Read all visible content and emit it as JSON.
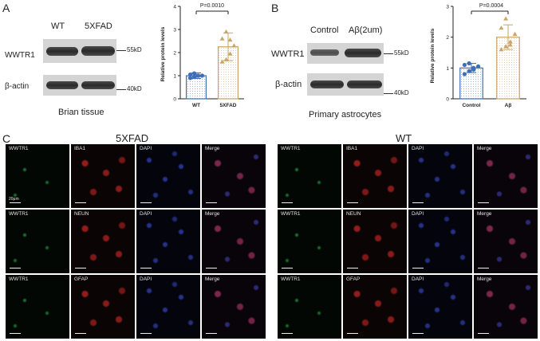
{
  "panelA": {
    "letter": "A",
    "lane_labels": [
      "WT",
      "5XFAD"
    ],
    "row_labels": [
      "WWTR1",
      "β-actin"
    ],
    "marker_labels": [
      "55kD",
      "40kD"
    ],
    "caption": "Brian tissue",
    "chart": {
      "ylabel": "Relative protein levels",
      "pvalue": "P=0.0010",
      "categories": [
        "WT",
        "5XFAD"
      ],
      "ticks": [
        "0",
        "1",
        "2",
        "3",
        "4"
      ]
    }
  },
  "panelB": {
    "letter": "B",
    "lane_labels": [
      "Control",
      "Aβ(2um)"
    ],
    "row_labels": [
      "WWTR1",
      "β-actin"
    ],
    "marker_labels": [
      "55kD",
      "40kD"
    ],
    "caption": "Primary astrocytes",
    "chart": {
      "ylabel": "Relative protein levels",
      "pvalue": "P=0.0004",
      "categories": [
        "Control",
        "Aβ"
      ],
      "ticks": [
        "0",
        "1",
        "2",
        "3"
      ]
    }
  },
  "panelC": {
    "letter": "C",
    "groups": [
      {
        "title": "5XFAD",
        "rows": [
          {
            "labels": [
              "WWTR1",
              "IBA1",
              "DAPI",
              "Merge"
            ],
            "scalebar": "20μm"
          },
          {
            "labels": [
              "WWTR1",
              "NEUN",
              "DAPI",
              "Merge"
            ]
          },
          {
            "labels": [
              "WWTR1",
              "GFAP",
              "DAPI",
              "Merge"
            ]
          }
        ]
      },
      {
        "title": "WT",
        "rows": [
          {
            "labels": [
              "WWTR1",
              "IBA1",
              "DAPI",
              "Merge"
            ]
          },
          {
            "labels": [
              "WWTR1",
              "NEUN",
              "DAPI",
              "Merge"
            ]
          },
          {
            "labels": [
              "WWTR1",
              "GFAP",
              "DAPI",
              "Merge"
            ]
          }
        ]
      }
    ]
  },
  "chart_data": [
    {
      "type": "bar",
      "title": "",
      "xlabel": "",
      "ylabel": "Relative protein levels",
      "categories": [
        "WT",
        "5XFAD"
      ],
      "values": [
        1.0,
        2.25
      ],
      "errors": [
        0.12,
        0.6
      ],
      "ylim": [
        0,
        4
      ],
      "points": [
        [
          0.9,
          0.95,
          1.0,
          1.0,
          1.05,
          1.1,
          1.0
        ],
        [
          1.6,
          1.7,
          1.95,
          2.3,
          2.6,
          2.9,
          2.55
        ]
      ],
      "colors": [
        "#3d6fb6",
        "#c9a46b"
      ],
      "annotation": "P=0.0010"
    },
    {
      "type": "bar",
      "title": "",
      "xlabel": "",
      "ylabel": "Relative protein levels",
      "categories": [
        "Control",
        "Aβ"
      ],
      "values": [
        1.0,
        2.0
      ],
      "errors": [
        0.15,
        0.4
      ],
      "ylim": [
        0,
        3
      ],
      "points": [
        [
          0.8,
          0.9,
          1.0,
          1.05,
          1.1,
          1.15,
          0.95
        ],
        [
          1.6,
          1.7,
          1.85,
          2.1,
          2.3,
          2.6,
          1.75
        ]
      ],
      "colors": [
        "#3d6fb6",
        "#c9a46b"
      ],
      "annotation": "P=0.0004"
    }
  ]
}
